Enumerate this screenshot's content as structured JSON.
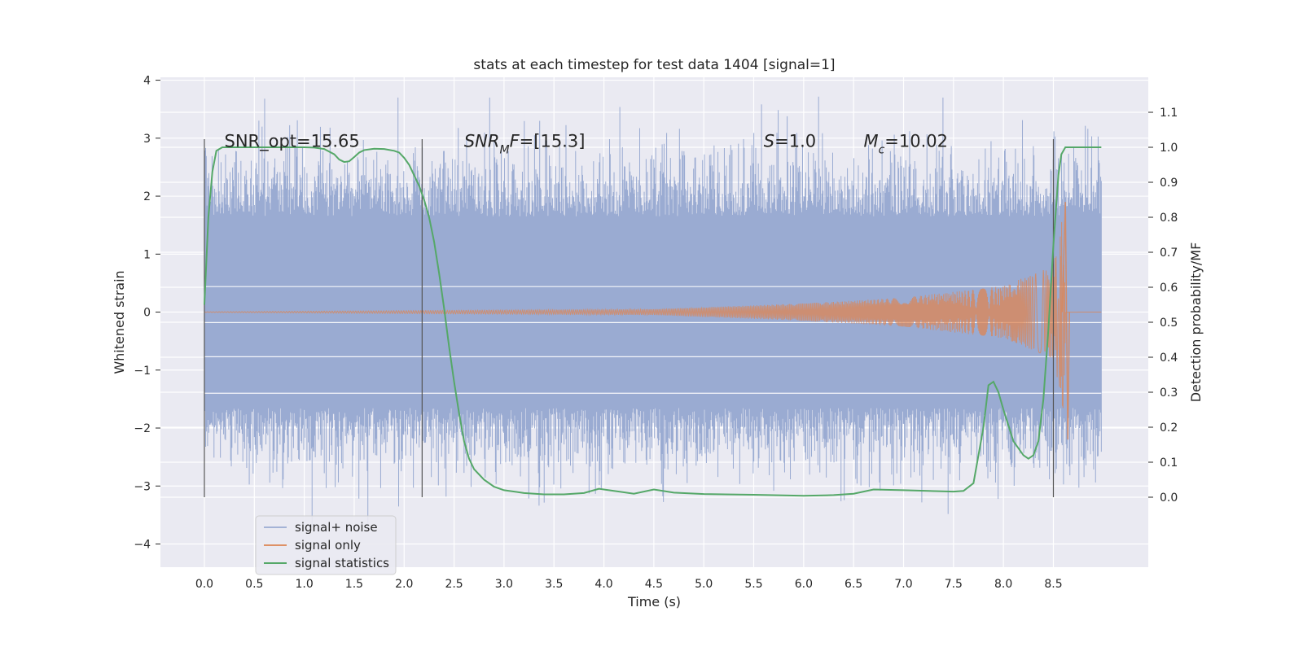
{
  "chart_data": {
    "type": "line",
    "title": "stats at each timestep for test data 1404 [signal=1]",
    "xlabel": "Time (s)",
    "ylabel_left": "Whitened strain",
    "ylabel_right": "Detection probability/MF",
    "xlim": [
      -0.44,
      9.45
    ],
    "ylim_left": [
      -4.4,
      4.05
    ],
    "ylim_right": [
      -0.2,
      1.2
    ],
    "x_ticks": [
      "0.0",
      "0.5",
      "1.0",
      "1.5",
      "2.0",
      "2.5",
      "3.0",
      "3.5",
      "4.0",
      "4.5",
      "5.0",
      "5.5",
      "6.0",
      "6.5",
      "7.0",
      "7.5",
      "8.0",
      "8.5"
    ],
    "y_left_ticks": [
      "4",
      "3",
      "2",
      "1",
      "0",
      "−1",
      "−2",
      "−3",
      "−4"
    ],
    "y_right_ticks": [
      "1.1",
      "1.0",
      "0.9",
      "0.8",
      "0.7",
      "0.6",
      "0.5",
      "0.4",
      "0.3",
      "0.2",
      "0.1",
      "0.0"
    ],
    "grid": true,
    "legend_position": "lower-left",
    "colors": {
      "background": "#eaeaf2",
      "noise": "#9aabd2",
      "signal": "#dd8452",
      "stats": "#55a868",
      "vlines": "#555555"
    },
    "annotations": [
      {
        "text_parts": [
          {
            "t": "SNR_opt=15.65",
            "style": "normal"
          }
        ]
      },
      {
        "text_parts": [
          {
            "t": "SNR",
            "style": "italic"
          },
          {
            "t": "M",
            "style": "italic-sub"
          },
          {
            "t": "F",
            "style": "italic"
          },
          {
            "t": "=[15.3]",
            "style": "normal"
          }
        ]
      },
      {
        "text_parts": [
          {
            "t": "S",
            "style": "italic"
          },
          {
            "t": "=1.0",
            "style": "normal"
          }
        ]
      },
      {
        "text_parts": [
          {
            "t": "M",
            "style": "italic"
          },
          {
            "t": "c",
            "style": "italic-sub"
          },
          {
            "t": "=10.02",
            "style": "normal"
          }
        ]
      }
    ],
    "vertical_lines_x": [
      0.0,
      2.18,
      8.5
    ],
    "series": [
      {
        "name": "signal+ noise",
        "kind": "noise_band",
        "x_range": [
          0.0,
          8.98
        ],
        "envelope_inner": 1.65,
        "spike_max": 3.7,
        "spike_min": -3.72
      },
      {
        "name": "signal only",
        "kind": "chirp",
        "x_range": [
          0.0,
          8.98
        ],
        "merger_time": 8.62,
        "peak_positive": 1.9,
        "peak_negative": -2.2,
        "amplitude_at": [
          [
            0.0,
            0.005
          ],
          [
            4.5,
            0.05
          ],
          [
            6.0,
            0.15
          ],
          [
            7.0,
            0.25
          ],
          [
            8.0,
            0.45
          ],
          [
            8.5,
            0.8
          ],
          [
            8.62,
            1.9
          ]
        ]
      },
      {
        "name": "signal statistics",
        "kind": "line",
        "axis": "right",
        "x": [
          0.0,
          0.04,
          0.08,
          0.12,
          0.18,
          0.25,
          0.4,
          0.6,
          0.8,
          1.0,
          1.1,
          1.2,
          1.3,
          1.35,
          1.4,
          1.45,
          1.5,
          1.55,
          1.6,
          1.7,
          1.8,
          1.9,
          1.95,
          2.0,
          2.05,
          2.1,
          2.15,
          2.2,
          2.25,
          2.3,
          2.35,
          2.4,
          2.45,
          2.5,
          2.55,
          2.6,
          2.65,
          2.7,
          2.8,
          2.9,
          3.0,
          3.2,
          3.4,
          3.6,
          3.8,
          3.95,
          4.1,
          4.3,
          4.5,
          4.7,
          5.0,
          5.5,
          6.0,
          6.3,
          6.5,
          6.7,
          7.0,
          7.5,
          7.6,
          7.7,
          7.8,
          7.85,
          7.9,
          7.95,
          8.0,
          8.1,
          8.2,
          8.25,
          8.3,
          8.35,
          8.4,
          8.45,
          8.5,
          8.55,
          8.58,
          8.62,
          8.7,
          8.8,
          8.98
        ],
        "values": [
          0.55,
          0.8,
          0.93,
          0.99,
          1.0,
          1.0,
          1.0,
          1.0,
          1.0,
          1.0,
          0.999,
          0.995,
          0.98,
          0.965,
          0.958,
          0.96,
          0.972,
          0.985,
          0.992,
          0.996,
          0.995,
          0.99,
          0.985,
          0.97,
          0.95,
          0.92,
          0.89,
          0.85,
          0.8,
          0.73,
          0.64,
          0.54,
          0.43,
          0.33,
          0.24,
          0.16,
          0.11,
          0.08,
          0.05,
          0.03,
          0.02,
          0.012,
          0.008,
          0.008,
          0.012,
          0.024,
          0.018,
          0.01,
          0.022,
          0.013,
          0.009,
          0.007,
          0.004,
          0.006,
          0.01,
          0.022,
          0.02,
          0.016,
          0.018,
          0.04,
          0.2,
          0.32,
          0.33,
          0.3,
          0.25,
          0.16,
          0.12,
          0.11,
          0.12,
          0.16,
          0.28,
          0.48,
          0.72,
          0.92,
          0.98,
          1.0,
          1.0,
          1.0,
          1.0
        ]
      }
    ]
  }
}
